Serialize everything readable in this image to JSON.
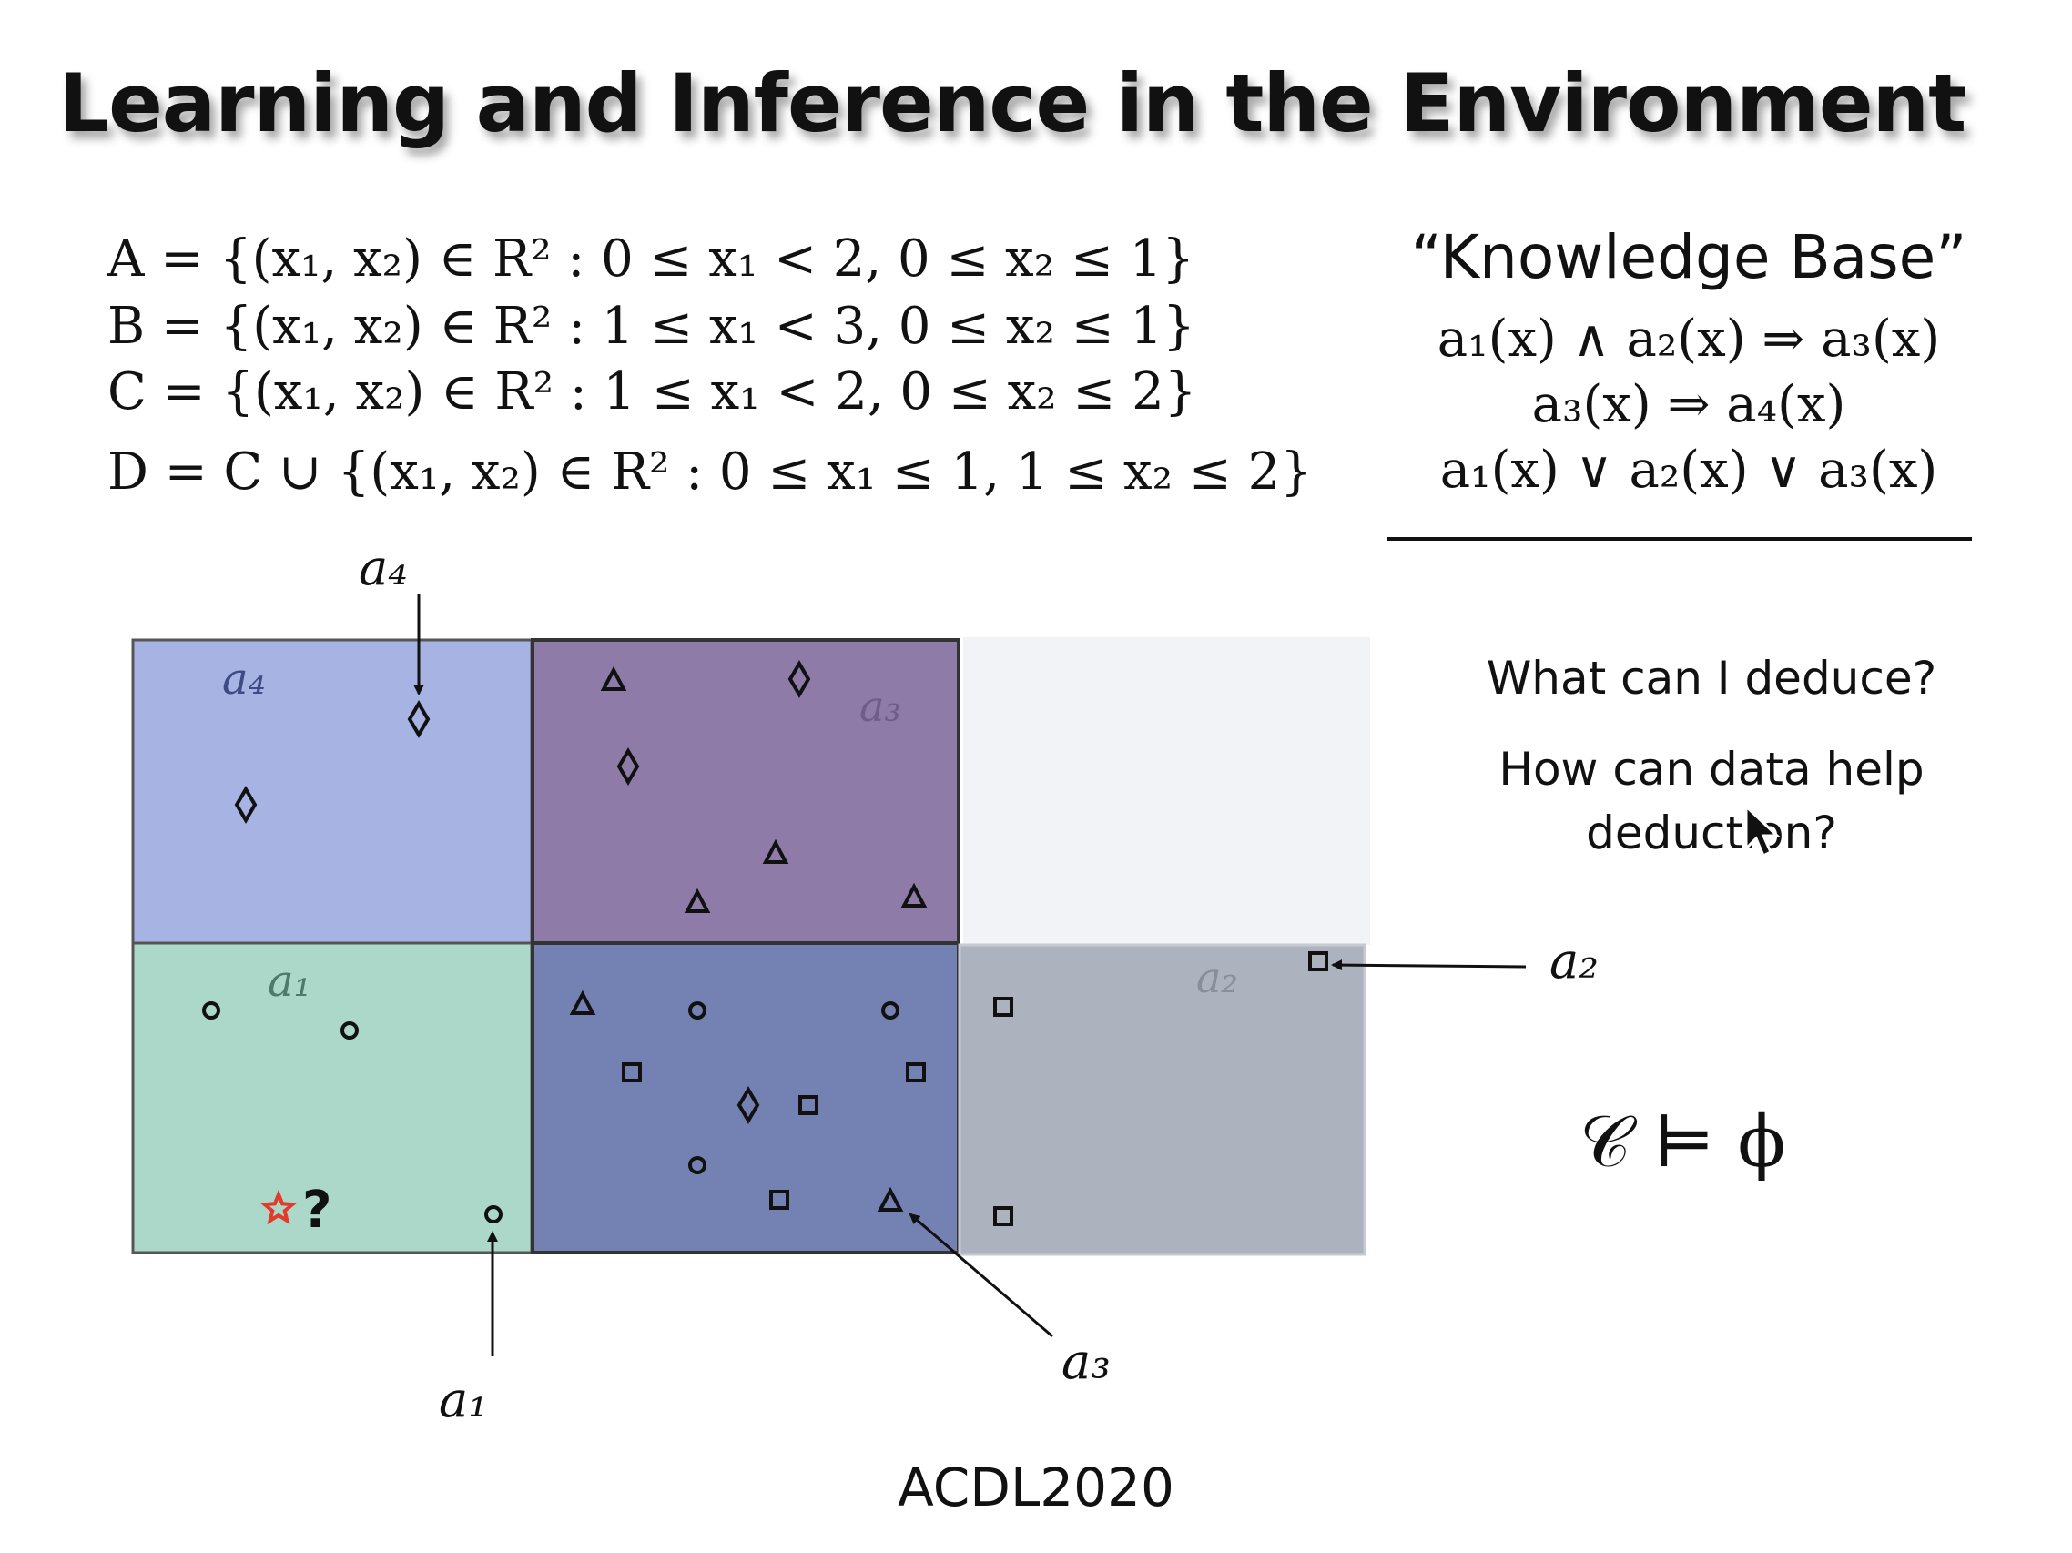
{
  "title": "Learning and Inference in the Environment",
  "definitions": [
    "A = {(x₁, x₂) ∈ R² :   0 ≤ x₁ < 2,   0 ≤ x₂ ≤ 1}",
    "B = {(x₁, x₂) ∈ R² :   1 ≤ x₁ < 3,   0 ≤ x₂ ≤ 1}",
    "C = {(x₁, x₂) ∈ R² :   1 ≤ x₁ < 2,   0 ≤ x₂ ≤ 2}",
    "D = C ∪ {(x₁, x₂) ∈ R² : 0 ≤ x₁ ≤ 1,  1 ≤ x₂ ≤ 2}"
  ],
  "knowledge_base": {
    "heading": "“Knowledge Base”",
    "rules": [
      "a₁(x)  ∧  a₂(x)  ⇒  a₃(x)",
      "a₃(x)  ⇒  a₄(x)",
      "a₁(x)  ∨  a₂(x)  ∨ a₃(x)"
    ]
  },
  "questions": [
    "What can I deduce?",
    "How can data help deduction?"
  ],
  "entailment": "𝒞 ⊨ ϕ",
  "footer": "ACDL2020",
  "diagram": {
    "region_labels": {
      "a4": "a₄",
      "a3": "a₃",
      "a1": "a₁",
      "a2": "a₂"
    },
    "callouts": {
      "a4": "a₄",
      "a1": "a₁",
      "a3": "a₃",
      "a2": "a₂"
    },
    "query_mark": "?",
    "colors": {
      "a4_region": "#a7b3e2",
      "a3_region": "#8f7ba8",
      "a1_region": "#acd8c9",
      "overlap_region": "#7482b3",
      "a2_region": "#adb2bf",
      "empty_region": "#f2f3f7",
      "query_star": "#e23b2a"
    },
    "markers": [
      {
        "shape": "diamond",
        "region": "a4"
      },
      {
        "shape": "diamond",
        "region": "a4"
      },
      {
        "shape": "triangle",
        "region": "a3"
      },
      {
        "shape": "diamond",
        "region": "a3"
      },
      {
        "shape": "diamond",
        "region": "a3"
      },
      {
        "shape": "triangle",
        "region": "a3"
      },
      {
        "shape": "triangle",
        "region": "a3"
      },
      {
        "shape": "triangle",
        "region": "a3"
      },
      {
        "shape": "circle",
        "region": "a1"
      },
      {
        "shape": "circle",
        "region": "a1"
      },
      {
        "shape": "circle",
        "region": "a1"
      },
      {
        "shape": "star",
        "region": "a1"
      },
      {
        "shape": "triangle",
        "region": "overlap"
      },
      {
        "shape": "circle",
        "region": "overlap"
      },
      {
        "shape": "circle",
        "region": "overlap"
      },
      {
        "shape": "square",
        "region": "overlap"
      },
      {
        "shape": "square",
        "region": "overlap"
      },
      {
        "shape": "diamond",
        "region": "overlap"
      },
      {
        "shape": "square",
        "region": "overlap"
      },
      {
        "shape": "circle",
        "region": "overlap"
      },
      {
        "shape": "square",
        "region": "overlap"
      },
      {
        "shape": "triangle",
        "region": "overlap"
      },
      {
        "shape": "square",
        "region": "a2"
      },
      {
        "shape": "square",
        "region": "a2"
      },
      {
        "shape": "square",
        "region": "a2"
      }
    ]
  }
}
